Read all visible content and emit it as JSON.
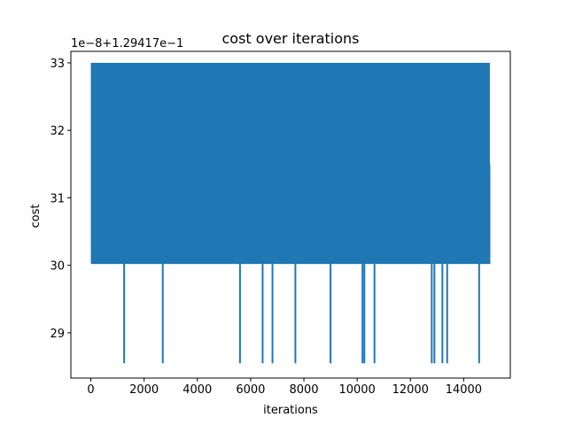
{
  "chart_data": {
    "type": "line",
    "title": "cost over iterations",
    "xlabel": "iterations",
    "ylabel": "cost",
    "offset_label": "1e−8+1.29417e−1",
    "xlim": [
      -750,
      15750
    ],
    "ylim": [
      28.33,
      33.17
    ],
    "xticks": [
      0,
      2000,
      4000,
      6000,
      8000,
      10000,
      12000,
      14000
    ],
    "xtick_labels": [
      "0",
      "2000",
      "4000",
      "6000",
      "8000",
      "10000",
      "12000",
      "14000"
    ],
    "yticks": [
      29,
      30,
      31,
      32,
      33
    ],
    "ytick_labels": [
      "29",
      "30",
      "31",
      "32",
      "33"
    ],
    "grid": false,
    "legend": "none",
    "series": [
      {
        "color": "#1f77b4",
        "oscillation": {
          "x_start": 0,
          "x_end": 15000,
          "y_low": 30.02,
          "y_high": 33.0,
          "end_y": 31.5
        },
        "dips": [
          {
            "x": 1250,
            "y": 28.55
          },
          {
            "x": 2700,
            "y": 28.55
          },
          {
            "x": 5600,
            "y": 28.55
          },
          {
            "x": 6450,
            "y": 28.55
          },
          {
            "x": 6820,
            "y": 28.55
          },
          {
            "x": 7680,
            "y": 28.55
          },
          {
            "x": 9000,
            "y": 28.55
          },
          {
            "x": 10200,
            "y": 28.55
          },
          {
            "x": 10270,
            "y": 28.55
          },
          {
            "x": 10650,
            "y": 28.55
          },
          {
            "x": 12800,
            "y": 28.55
          },
          {
            "x": 12900,
            "y": 28.55
          },
          {
            "x": 13200,
            "y": 28.55
          },
          {
            "x": 13380,
            "y": 28.55
          },
          {
            "x": 14580,
            "y": 28.55
          }
        ]
      }
    ]
  }
}
